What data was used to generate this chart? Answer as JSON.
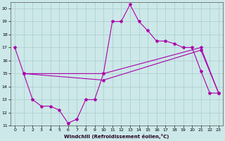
{
  "background_color": "#cce8e8",
  "line_color": "#aa00aa",
  "grid_color": "#aacccc",
  "xlim": [
    -0.5,
    23.5
  ],
  "ylim": [
    11,
    20.5
  ],
  "yticks": [
    11,
    12,
    13,
    14,
    15,
    16,
    17,
    18,
    19,
    20
  ],
  "xticks": [
    0,
    1,
    2,
    3,
    4,
    5,
    6,
    7,
    8,
    9,
    10,
    11,
    12,
    13,
    14,
    15,
    16,
    17,
    18,
    19,
    20,
    21,
    22,
    23
  ],
  "xlabel": "Windchill (Refroidissement éolien,°C)",
  "line1_x": [
    0,
    1,
    2,
    3,
    4,
    5,
    6,
    7,
    8,
    9,
    10,
    11,
    12,
    13,
    14,
    15,
    16,
    17,
    18,
    19,
    20,
    21,
    22,
    23
  ],
  "line1_y": [
    17,
    15,
    13,
    12.5,
    12.5,
    12.2,
    11.2,
    11.5,
    13,
    13,
    15,
    19,
    19,
    20.3,
    19,
    18.3,
    17.5,
    17.5,
    17.3,
    17,
    17,
    15.2,
    13.5,
    13.5
  ],
  "line2_x": [
    1,
    10,
    21,
    23
  ],
  "line2_y": [
    15,
    15,
    17,
    13.5
  ],
  "line3_x": [
    1,
    10,
    21,
    23
  ],
  "line3_y": [
    15,
    14.5,
    16.8,
    13.5
  ],
  "marker": "*",
  "marker_size": 3,
  "linewidth": 0.8
}
